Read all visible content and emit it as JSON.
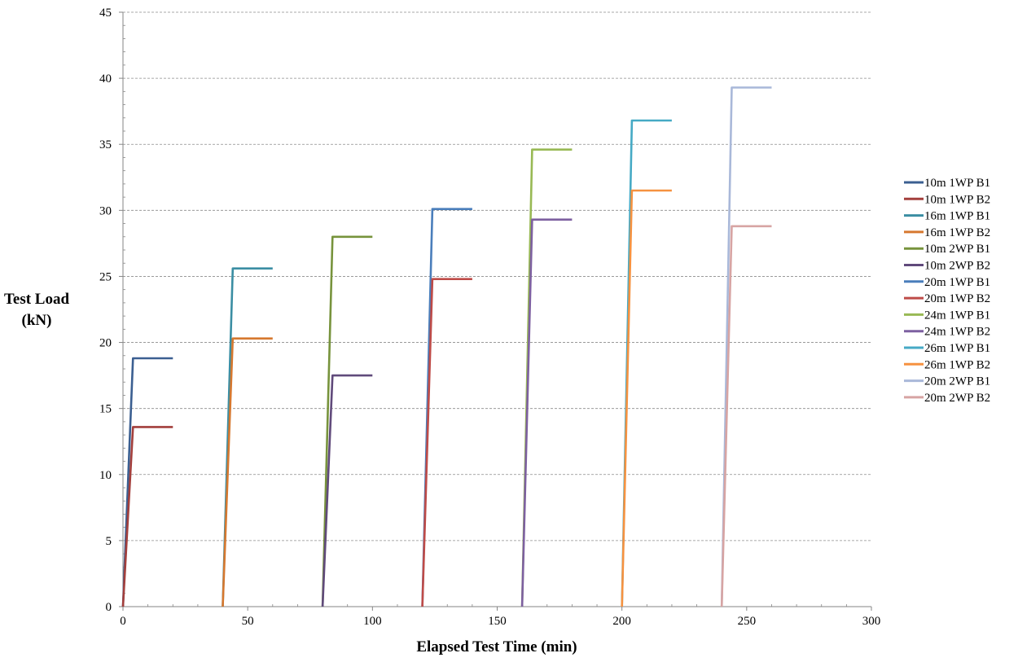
{
  "chart_data": {
    "type": "line",
    "title": "",
    "xlabel": "Elapsed Test Time (min)",
    "ylabel_lines": [
      "Test Load",
      "(kN)"
    ],
    "xlim": [
      0,
      300
    ],
    "ylim": [
      0,
      45
    ],
    "xticks": [
      0,
      50,
      100,
      150,
      200,
      250,
      300
    ],
    "yticks": [
      0,
      5,
      10,
      15,
      20,
      25,
      30,
      35,
      40,
      45
    ],
    "grid": "horizontal-dashed",
    "legend_position": "right",
    "series": [
      {
        "name": "10m 1WP B1",
        "color": "#3b5f91",
        "x": [
          0,
          4,
          20
        ],
        "y": [
          0,
          18.8,
          18.8
        ]
      },
      {
        "name": "10m 1WP B2",
        "color": "#a33f3c",
        "x": [
          0,
          4,
          20
        ],
        "y": [
          0,
          13.6,
          13.6
        ]
      },
      {
        "name": "16m 1WP B1",
        "color": "#3b8ea3",
        "x": [
          40,
          44,
          60
        ],
        "y": [
          0,
          25.6,
          25.6
        ]
      },
      {
        "name": "16m 1WP B2",
        "color": "#d6782f",
        "x": [
          40,
          44,
          60
        ],
        "y": [
          0,
          20.3,
          20.3
        ]
      },
      {
        "name": "10m 2WP B1",
        "color": "#77933c",
        "x": [
          80,
          84,
          100
        ],
        "y": [
          0,
          28.0,
          28.0
        ]
      },
      {
        "name": "10m 2WP B2",
        "color": "#604a7b",
        "x": [
          80,
          84,
          100
        ],
        "y": [
          0,
          17.5,
          17.5
        ]
      },
      {
        "name": "20m 1WP B1",
        "color": "#4a7ebb",
        "x": [
          120,
          124,
          140
        ],
        "y": [
          0,
          30.1,
          30.1
        ]
      },
      {
        "name": "20m 1WP B2",
        "color": "#be4b48",
        "x": [
          120,
          124,
          140
        ],
        "y": [
          0,
          24.8,
          24.8
        ]
      },
      {
        "name": "24m 1WP B1",
        "color": "#98b954",
        "x": [
          160,
          164,
          180
        ],
        "y": [
          0,
          34.6,
          34.6
        ]
      },
      {
        "name": "24m 1WP B2",
        "color": "#7d60a0",
        "x": [
          160,
          164,
          180
        ],
        "y": [
          0,
          29.3,
          29.3
        ]
      },
      {
        "name": "26m 1WP B1",
        "color": "#46aac5",
        "x": [
          200,
          204,
          220
        ],
        "y": [
          0,
          36.8,
          36.8
        ]
      },
      {
        "name": "26m 1WP B2",
        "color": "#f69240",
        "x": [
          200,
          204,
          220
        ],
        "y": [
          0,
          31.5,
          31.5
        ]
      },
      {
        "name": "20m 2WP B1",
        "color": "#a9b8d9",
        "x": [
          240,
          244,
          260
        ],
        "y": [
          0,
          39.3,
          39.3
        ]
      },
      {
        "name": "20m 2WP B2",
        "color": "#d7a4a3",
        "x": [
          240,
          244,
          260
        ],
        "y": [
          0,
          28.8,
          28.8
        ]
      }
    ]
  }
}
